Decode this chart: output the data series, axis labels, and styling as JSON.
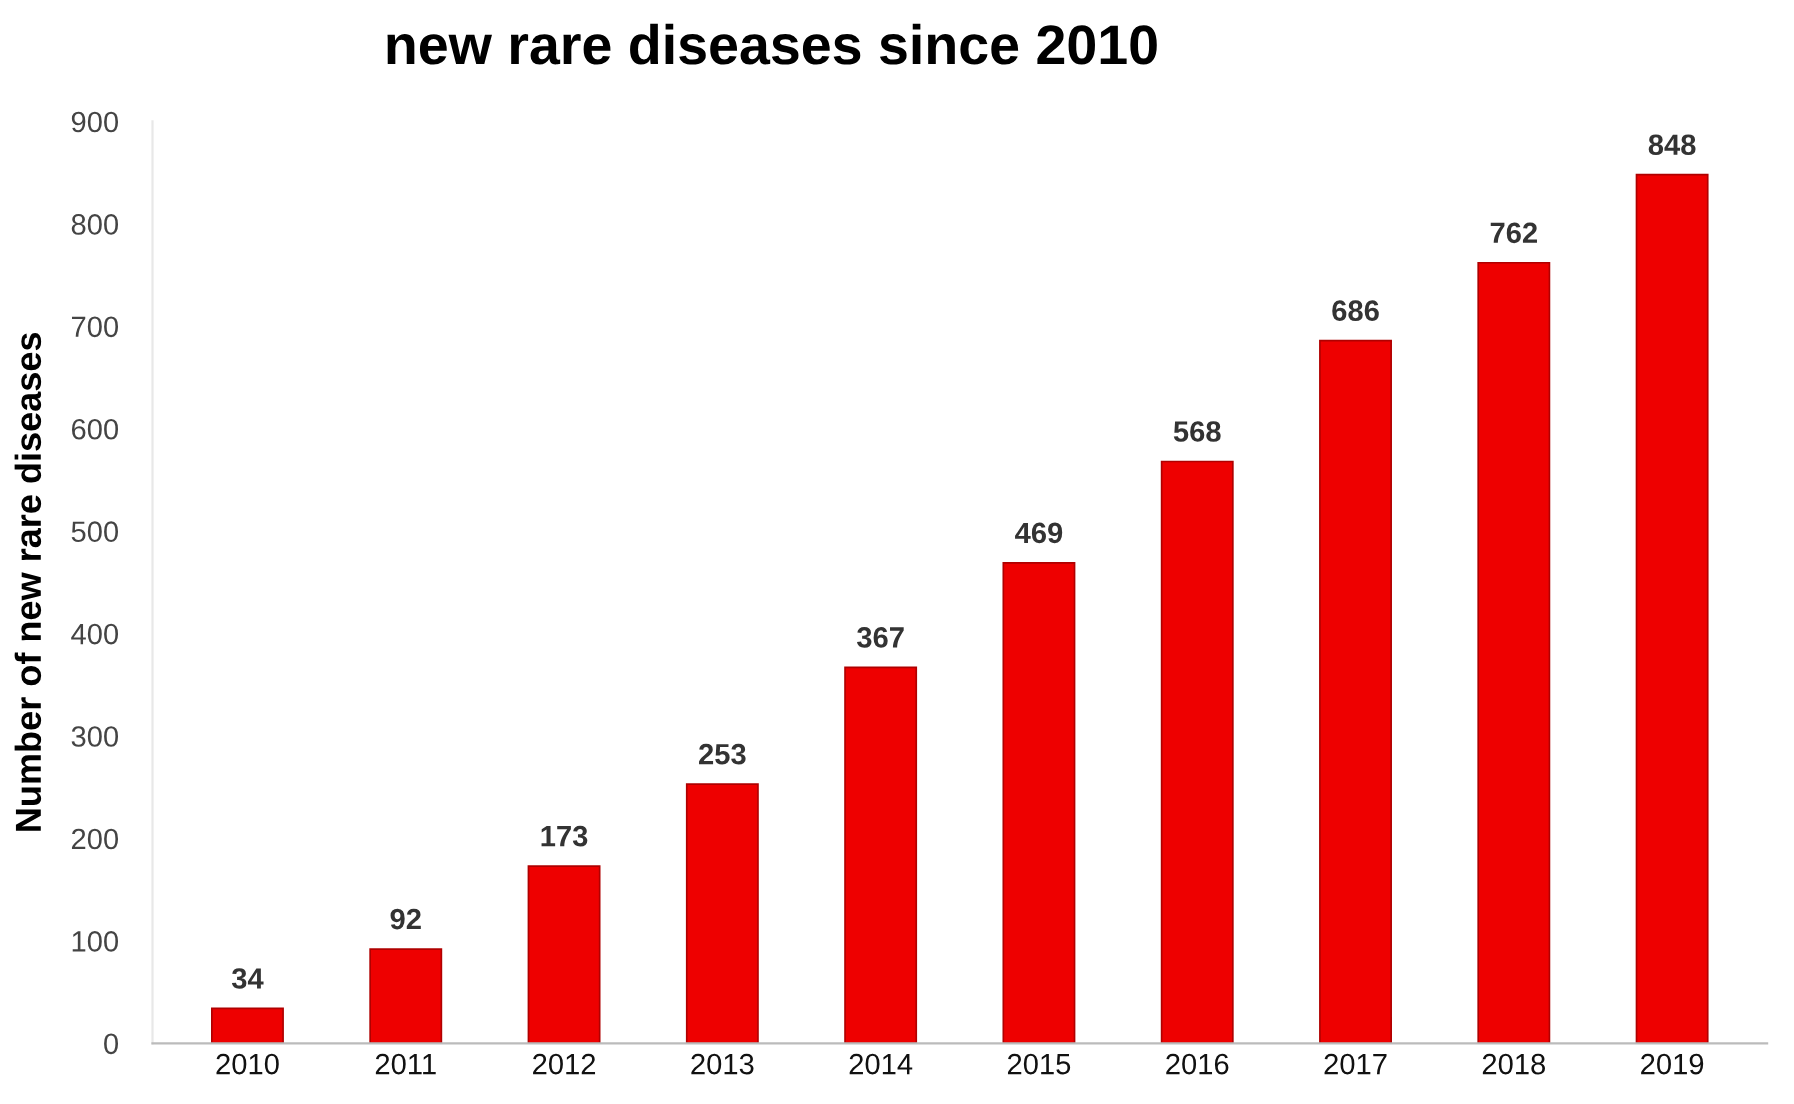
{
  "chart_data": {
    "type": "bar",
    "title": "new rare diseases since 2010",
    "ylabel": "Number of new rare diseases",
    "categories": [
      "2010",
      "2011",
      "2012",
      "2013",
      "2014",
      "2015",
      "2016",
      "2017",
      "2018",
      "2019"
    ],
    "values": [
      34,
      92,
      173,
      253,
      367,
      469,
      568,
      686,
      762,
      848
    ],
    "color": "#ee0000",
    "ylim": [
      0,
      900
    ],
    "yticks": [
      0,
      100,
      200,
      300,
      400,
      500,
      600,
      700,
      800,
      900
    ],
    "grid": false,
    "data_labels": true
  }
}
